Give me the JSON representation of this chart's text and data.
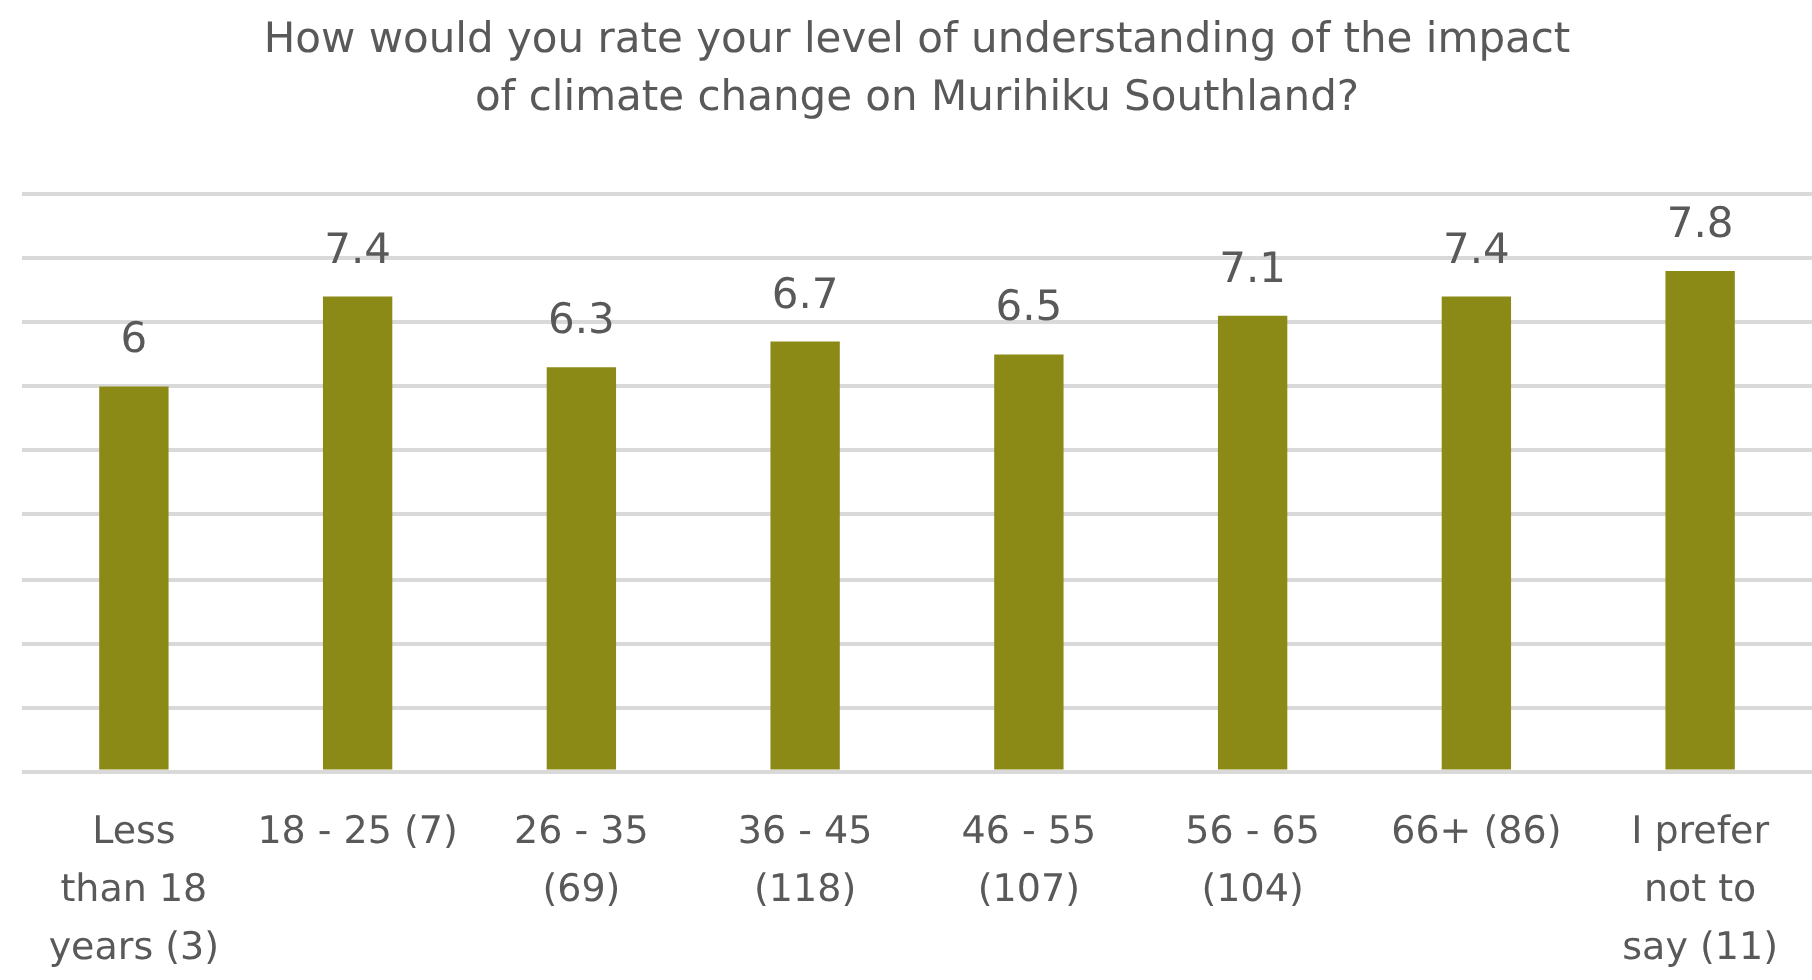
{
  "chart_data": {
    "type": "bar",
    "title": "How would you rate your level of understanding of the impact of climate change on Murihiku Southland?",
    "categories": [
      "Less than 18 years (3)",
      "18 - 25 (7)",
      "26 - 35 (69)",
      "36 - 45 (118)",
      "46 - 55 (107)",
      "56 - 65 (104)",
      "66+ (86)",
      "I prefer not to say (11)"
    ],
    "values": [
      6,
      7.4,
      6.3,
      6.7,
      6.5,
      7.1,
      7.4,
      7.8
    ],
    "color": "#8b8a16",
    "ylim": [
      0,
      9
    ],
    "yticks": [
      {
        "value": 0,
        "label": null
      },
      {
        "value": 1,
        "label": null
      },
      {
        "value": 2,
        "label": null
      },
      {
        "value": 3,
        "label": null
      },
      {
        "value": 4,
        "label": null
      },
      {
        "value": 5,
        "label": null
      },
      {
        "value": 6,
        "label": null
      },
      {
        "value": 7,
        "label": null
      },
      {
        "value": 8,
        "label": null
      },
      {
        "value": 9,
        "label": null
      }
    ],
    "grid": "y",
    "tick_labels": "x",
    "data_labels": true
  }
}
